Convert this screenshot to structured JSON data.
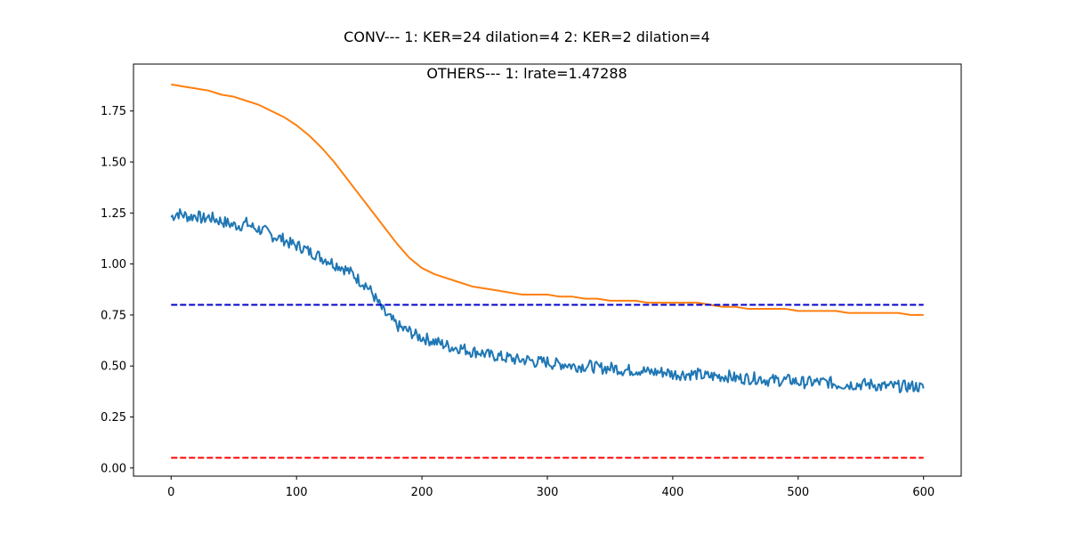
{
  "chart_data": {
    "type": "line",
    "title": "CONV--- 1: KER=24   dilation=4   2: KER=2   dilation=4",
    "subtitle": "OTHERS--- 1: lrate=1.47288",
    "xlabel": "",
    "ylabel": "",
    "xlim": [
      -30,
      630
    ],
    "ylim": [
      -0.04,
      1.98
    ],
    "grid": false,
    "xticks": [
      0,
      100,
      200,
      300,
      400,
      500,
      600
    ],
    "xtick_labels": [
      "0",
      "100",
      "200",
      "300",
      "400",
      "500",
      "600"
    ],
    "yticks": [
      0.0,
      0.25,
      0.5,
      0.75,
      1.0,
      1.25,
      1.5,
      1.75
    ],
    "ytick_labels": [
      "0.00",
      "0.25",
      "0.50",
      "0.75",
      "1.00",
      "1.25",
      "1.50",
      "1.75"
    ],
    "series": [
      {
        "color": "#1f77b4",
        "style": "solid",
        "x": [
          0,
          5,
          10,
          15,
          20,
          25,
          30,
          35,
          40,
          45,
          50,
          55,
          60,
          65,
          70,
          75,
          80,
          85,
          90,
          95,
          100,
          105,
          110,
          115,
          120,
          125,
          130,
          135,
          140,
          145,
          150,
          155,
          160,
          165,
          170,
          175,
          180,
          185,
          190,
          195,
          200,
          205,
          210,
          215,
          220,
          225,
          230,
          235,
          240,
          245,
          250,
          255,
          260,
          265,
          270,
          275,
          280,
          285,
          290,
          295,
          300,
          305,
          310,
          315,
          320,
          325,
          330,
          335,
          340,
          345,
          350,
          355,
          360,
          365,
          370,
          375,
          380,
          385,
          390,
          395,
          400,
          405,
          410,
          415,
          420,
          425,
          430,
          435,
          440,
          445,
          450,
          455,
          460,
          465,
          470,
          475,
          480,
          485,
          490,
          495,
          500,
          505,
          510,
          515,
          520,
          525,
          530,
          535,
          540,
          545,
          550,
          555,
          560,
          565,
          570,
          575,
          580,
          585,
          590,
          595,
          600
        ],
        "values": [
          1.23,
          1.25,
          1.24,
          1.23,
          1.24,
          1.22,
          1.23,
          1.22,
          1.21,
          1.2,
          1.19,
          1.19,
          1.2,
          1.18,
          1.17,
          1.16,
          1.14,
          1.13,
          1.12,
          1.1,
          1.09,
          1.08,
          1.06,
          1.05,
          1.03,
          1.02,
          1.0,
          0.99,
          0.97,
          0.95,
          0.92,
          0.9,
          0.86,
          0.81,
          0.76,
          0.73,
          0.7,
          0.68,
          0.67,
          0.65,
          0.64,
          0.63,
          0.62,
          0.61,
          0.6,
          0.59,
          0.59,
          0.58,
          0.57,
          0.57,
          0.56,
          0.55,
          0.55,
          0.54,
          0.54,
          0.53,
          0.53,
          0.53,
          0.52,
          0.52,
          0.52,
          0.51,
          0.51,
          0.51,
          0.5,
          0.5,
          0.5,
          0.5,
          0.49,
          0.49,
          0.49,
          0.49,
          0.48,
          0.48,
          0.48,
          0.48,
          0.47,
          0.47,
          0.47,
          0.47,
          0.46,
          0.46,
          0.46,
          0.46,
          0.46,
          0.45,
          0.45,
          0.45,
          0.45,
          0.45,
          0.44,
          0.44,
          0.44,
          0.44,
          0.44,
          0.43,
          0.43,
          0.43,
          0.43,
          0.43,
          0.42,
          0.42,
          0.42,
          0.42,
          0.42,
          0.42,
          0.41,
          0.41,
          0.41,
          0.41,
          0.41,
          0.41,
          0.41,
          0.4,
          0.4,
          0.4,
          0.4,
          0.4,
          0.4,
          0.4,
          0.39
        ]
      },
      {
        "color": "#ff7f0e",
        "style": "solid",
        "x": [
          0,
          10,
          20,
          30,
          40,
          50,
          60,
          70,
          80,
          90,
          100,
          110,
          120,
          130,
          140,
          150,
          160,
          170,
          180,
          190,
          200,
          210,
          220,
          230,
          240,
          250,
          260,
          270,
          280,
          290,
          300,
          310,
          320,
          330,
          340,
          350,
          360,
          370,
          380,
          390,
          400,
          410,
          420,
          430,
          440,
          450,
          460,
          470,
          480,
          490,
          500,
          510,
          520,
          530,
          540,
          550,
          560,
          570,
          580,
          590,
          600
        ],
        "values": [
          1.88,
          1.87,
          1.86,
          1.85,
          1.83,
          1.82,
          1.8,
          1.78,
          1.75,
          1.72,
          1.68,
          1.63,
          1.57,
          1.5,
          1.42,
          1.34,
          1.26,
          1.18,
          1.1,
          1.03,
          0.98,
          0.95,
          0.93,
          0.91,
          0.89,
          0.88,
          0.87,
          0.86,
          0.85,
          0.85,
          0.85,
          0.84,
          0.84,
          0.83,
          0.83,
          0.82,
          0.82,
          0.82,
          0.81,
          0.81,
          0.81,
          0.81,
          0.81,
          0.8,
          0.79,
          0.79,
          0.78,
          0.78,
          0.78,
          0.78,
          0.77,
          0.77,
          0.77,
          0.77,
          0.76,
          0.76,
          0.76,
          0.76,
          0.76,
          0.75,
          0.75
        ],
        "smooth_noise": true
      },
      {
        "color": "#0000cd",
        "style": "dashed",
        "x": [
          0,
          600
        ],
        "values": [
          0.8,
          0.8
        ]
      },
      {
        "color": "#ff0000",
        "style": "dashed",
        "x": [
          0,
          600
        ],
        "values": [
          0.05,
          0.05
        ]
      }
    ]
  }
}
